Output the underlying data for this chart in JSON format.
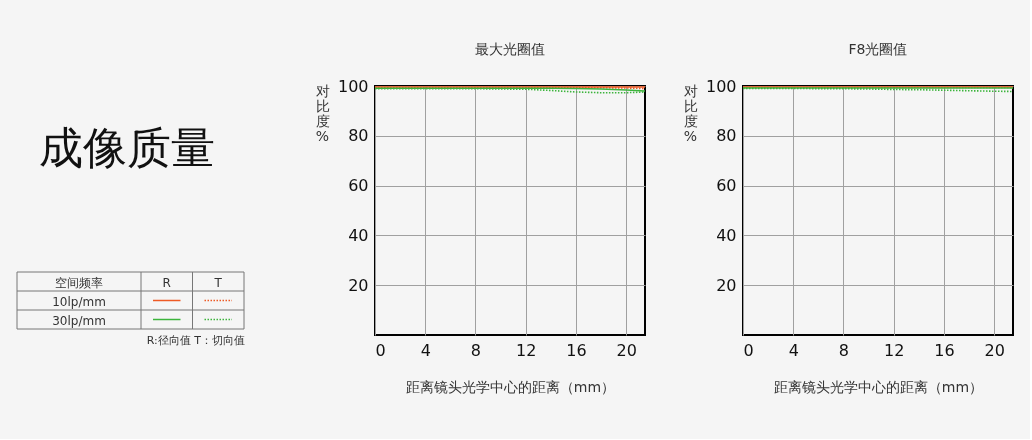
{
  "chart_data": [
    {
      "type": "other",
      "title": "成像质量"
    },
    {
      "type": "line",
      "title": "最大光圈值",
      "xlabel": "距离镜头光学中心的距离（mm）",
      "ylabel": "对比度%",
      "legend_title": "空间频率",
      "grid": true,
      "x": [
        0,
        4,
        8,
        10,
        12,
        14,
        16,
        18,
        20,
        21.5
      ],
      "xlim": [
        0,
        21.5
      ],
      "xticks": [
        0,
        4,
        8,
        12,
        16,
        20
      ],
      "ylim": [
        0,
        100
      ],
      "yticks": [
        20,
        40,
        60,
        80,
        100
      ],
      "annotations": [
        "R",
        "T",
        "10lp/mm",
        "30lp/mm",
        "R:径向值 T：切向值"
      ],
      "series": [
        {
          "color": "#ee5a24",
          "line_style": "solid",
          "values": [
            99.6,
            99.6,
            99.6,
            99.6,
            99.6,
            99.6,
            99.6,
            99.6,
            99.6,
            99.6
          ]
        },
        {
          "color": "#ee5a24",
          "line_style": "dotted",
          "values": [
            99.4,
            99.4,
            99.4,
            99.4,
            99.4,
            99.4,
            99.4,
            99.3,
            99.2,
            99
          ]
        },
        {
          "color": "#3cb43c",
          "line_style": "solid",
          "values": [
            99.1,
            99.1,
            99.1,
            99.1,
            99.1,
            99.1,
            99,
            98.8,
            98.4,
            98
          ]
        },
        {
          "color": "#3cb43c",
          "line_style": "dotted",
          "values": [
            98.9,
            98.9,
            98.9,
            98.8,
            98.7,
            98.2,
            97.6,
            97.3,
            97.3,
            97.6
          ]
        }
      ]
    },
    {
      "type": "line",
      "title": "F8光圈值",
      "xlabel": "距离镜头光学中心的距离（mm）",
      "ylabel": "对比度%",
      "grid": true,
      "x": [
        0,
        4,
        8,
        10,
        12,
        14,
        16,
        18,
        20,
        21.5
      ],
      "xlim": [
        0,
        21.5
      ],
      "xticks": [
        0,
        4,
        8,
        12,
        16,
        20
      ],
      "ylim": [
        0,
        100
      ],
      "yticks": [
        20,
        40,
        60,
        80,
        100
      ],
      "series": [
        {
          "color": "#ee5a24",
          "line_style": "solid",
          "values": [
            99.6,
            99.6,
            99.6,
            99.6,
            99.6,
            99.6,
            99.6,
            99.6,
            99.6,
            99.6
          ]
        },
        {
          "color": "#ee5a24",
          "line_style": "dotted",
          "values": [
            99.4,
            99.4,
            99.4,
            99.4,
            99.4,
            99.4,
            99.4,
            99.4,
            99.4,
            99.4
          ]
        },
        {
          "color": "#3cb43c",
          "line_style": "solid",
          "values": [
            99.2,
            99.2,
            99.2,
            99.2,
            99.2,
            99.2,
            99.2,
            99.2,
            99.2,
            99.2
          ]
        },
        {
          "color": "#3cb43c",
          "line_style": "dotted",
          "values": [
            99,
            99,
            98.9,
            98.8,
            98.6,
            98.5,
            98.3,
            98.1,
            97.9,
            97.8
          ]
        }
      ]
    }
  ]
}
